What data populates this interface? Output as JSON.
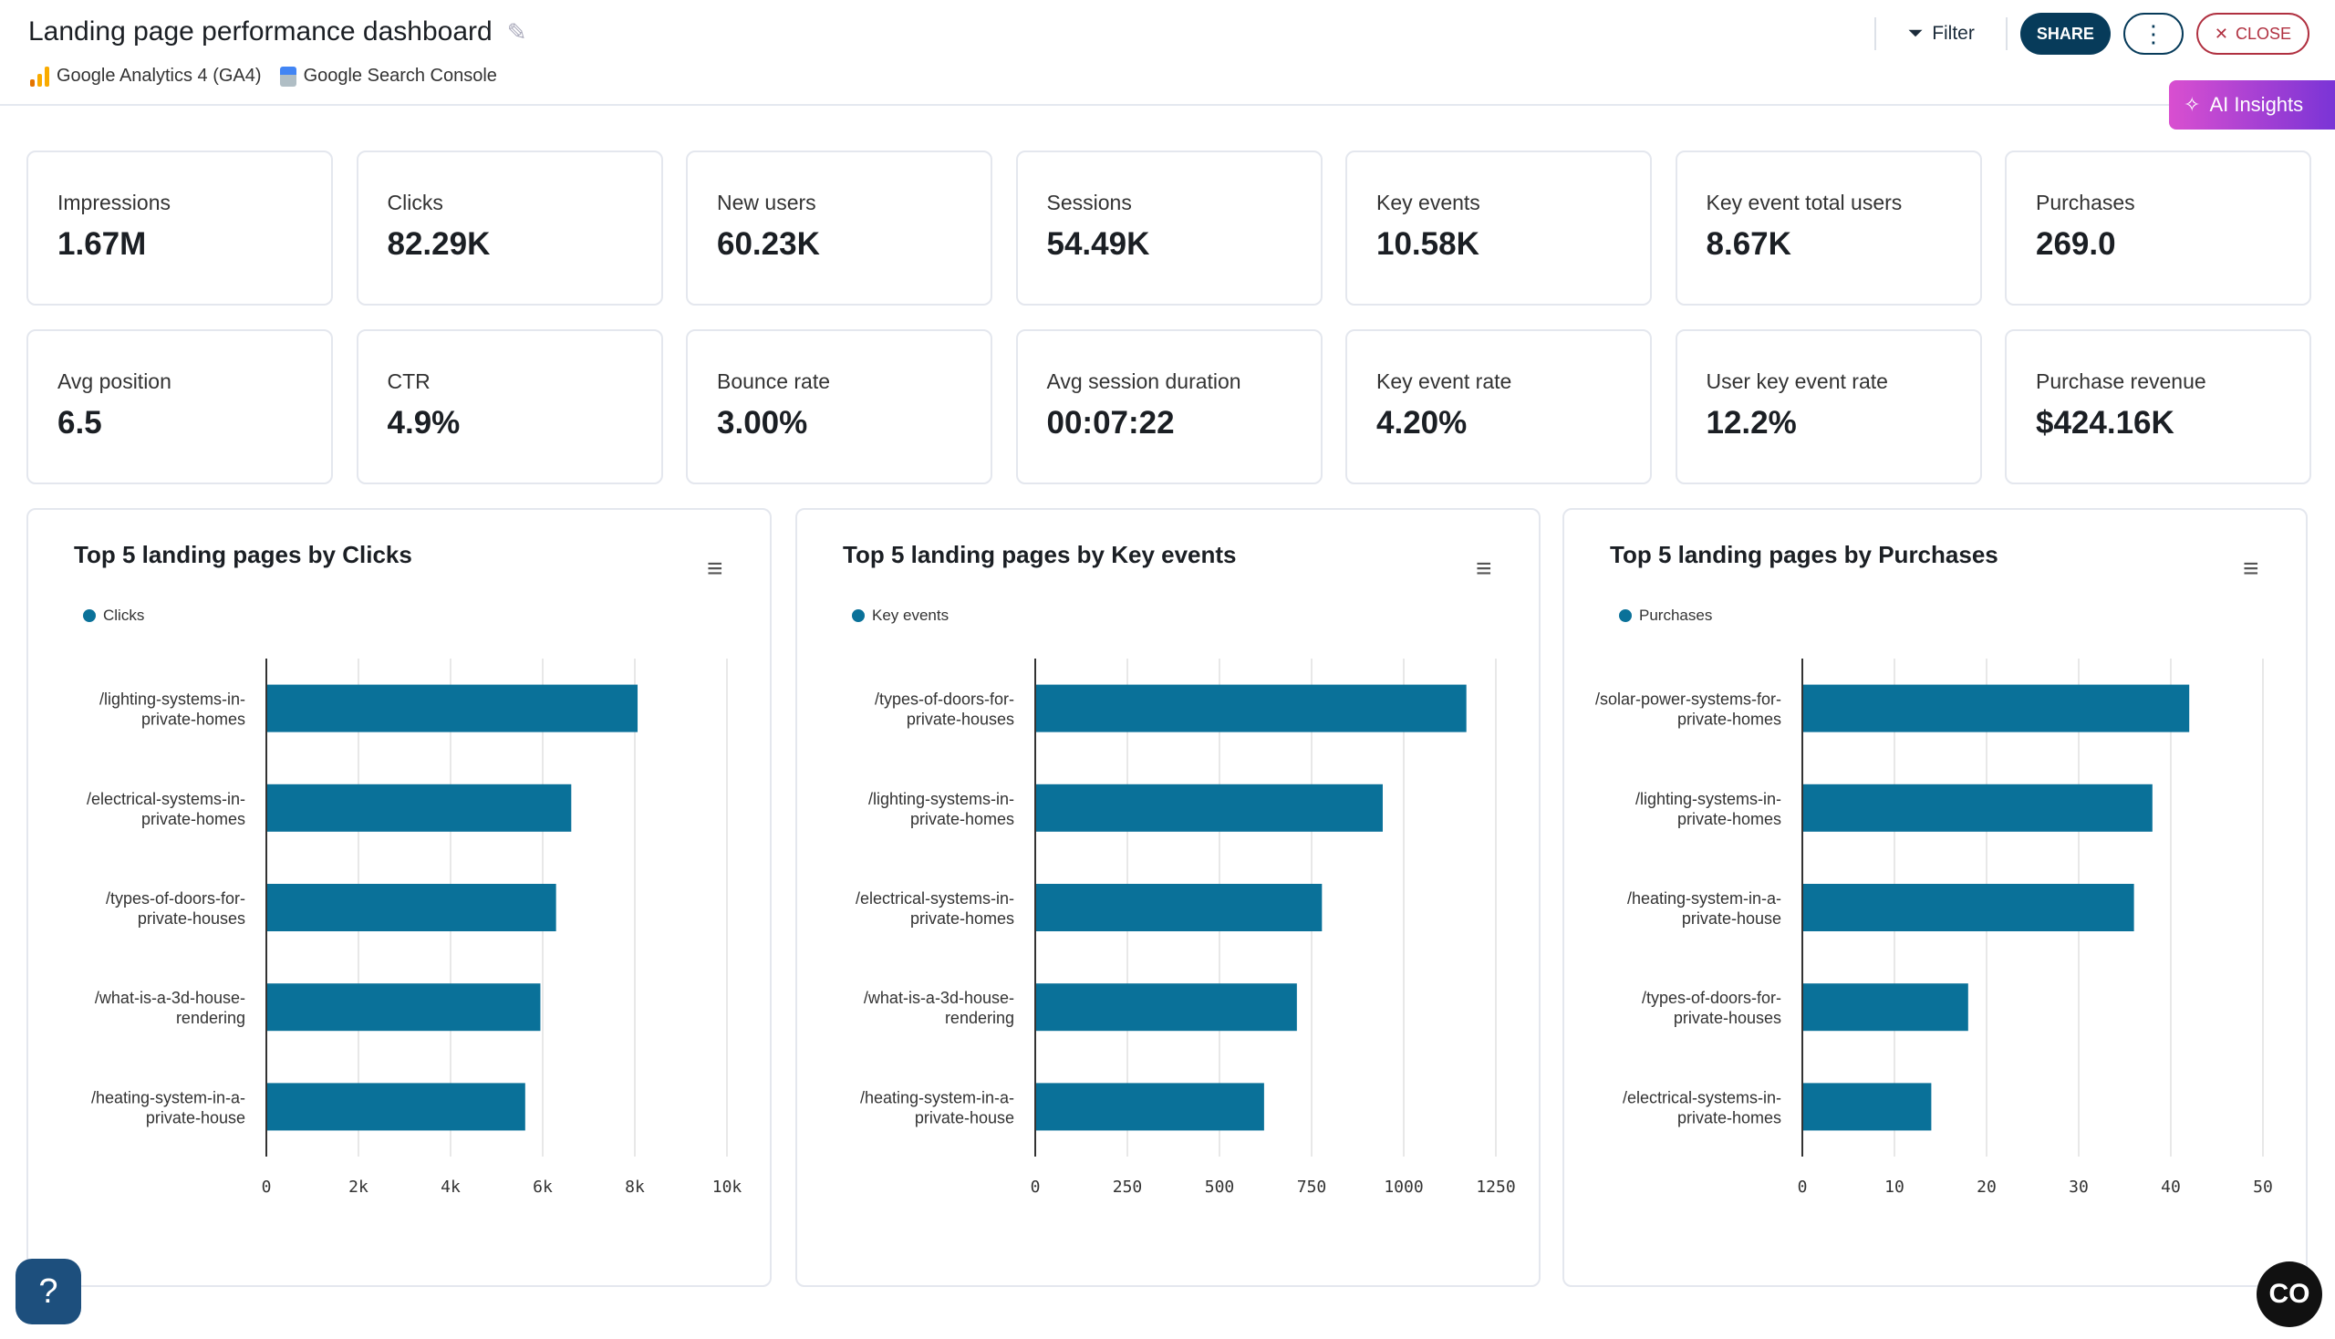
{
  "header": {
    "title": "Landing page performance dashboard",
    "sources": [
      "Google Analytics 4 (GA4)",
      "Google Search Console"
    ],
    "filter_label": "Filter",
    "share_label": "SHARE",
    "close_label": "CLOSE",
    "ai_label": "AI Insights",
    "more_icon": "⋮"
  },
  "metrics": [
    {
      "label": "Impressions",
      "value": "1.67M"
    },
    {
      "label": "Clicks",
      "value": "82.29K"
    },
    {
      "label": "New users",
      "value": "60.23K"
    },
    {
      "label": "Sessions",
      "value": "54.49K"
    },
    {
      "label": "Key events",
      "value": "10.58K"
    },
    {
      "label": "Key event total users",
      "value": "8.67K"
    },
    {
      "label": "Purchases",
      "value": "269.0"
    },
    {
      "label": "Avg position",
      "value": "6.5"
    },
    {
      "label": "CTR",
      "value": "4.9%"
    },
    {
      "label": "Bounce rate",
      "value": "3.00%"
    },
    {
      "label": "Avg session duration",
      "value": "00:07:22"
    },
    {
      "label": "Key event rate",
      "value": "4.20%"
    },
    {
      "label": "User key event rate",
      "value": "12.2%"
    },
    {
      "label": "Purchase revenue",
      "value": "$424.16K"
    }
  ],
  "colors": {
    "bar": "#0a7199",
    "share": "#073b5a",
    "close": "#b03040"
  },
  "chart_data": [
    {
      "type": "bar",
      "orientation": "horizontal",
      "title": "Top 5 landing pages by Clicks",
      "legend": "Clicks",
      "categories": [
        [
          "/lighting-systems-in-",
          "private-homes"
        ],
        [
          "/electrical-systems-in-",
          "private-homes"
        ],
        [
          "/types-of-doors-for-",
          "private-houses"
        ],
        [
          "/what-is-a-3d-house-",
          "rendering"
        ],
        [
          "/heating-system-in-a-",
          "private-house"
        ]
      ],
      "values": [
        8060,
        6620,
        6290,
        5950,
        5620
      ],
      "xlim": [
        0,
        10000
      ],
      "ticks": [
        "0",
        "2k",
        "4k",
        "6k",
        "8k",
        "10k"
      ],
      "grid": true
    },
    {
      "type": "bar",
      "orientation": "horizontal",
      "title": "Top 5 landing pages by Key events",
      "legend": "Key events",
      "categories": [
        [
          "/types-of-doors-for-",
          "private-houses"
        ],
        [
          "/lighting-systems-in-",
          "private-homes"
        ],
        [
          "/electrical-systems-in-",
          "private-homes"
        ],
        [
          "/what-is-a-3d-house-",
          "rendering"
        ],
        [
          "/heating-system-in-a-",
          "private-house"
        ]
      ],
      "values": [
        1170,
        943,
        778,
        710,
        621
      ],
      "xlim": [
        0,
        1250
      ],
      "ticks": [
        "0",
        "250",
        "500",
        "750",
        "1000",
        "1250"
      ],
      "grid": true
    },
    {
      "type": "bar",
      "orientation": "horizontal",
      "title": "Top 5 landing pages by Purchases",
      "legend": "Purchases",
      "categories": [
        [
          "/solar-power-systems-for-",
          "private-homes"
        ],
        [
          "/lighting-systems-in-",
          "private-homes"
        ],
        [
          "/heating-system-in-a-",
          "private-house"
        ],
        [
          "/types-of-doors-for-",
          "private-houses"
        ],
        [
          "/electrical-systems-in-",
          "private-homes"
        ]
      ],
      "values": [
        42,
        38,
        36,
        18,
        14
      ],
      "xlim": [
        0,
        50
      ],
      "ticks": [
        "0",
        "10",
        "20",
        "30",
        "40",
        "50"
      ],
      "grid": true
    }
  ]
}
